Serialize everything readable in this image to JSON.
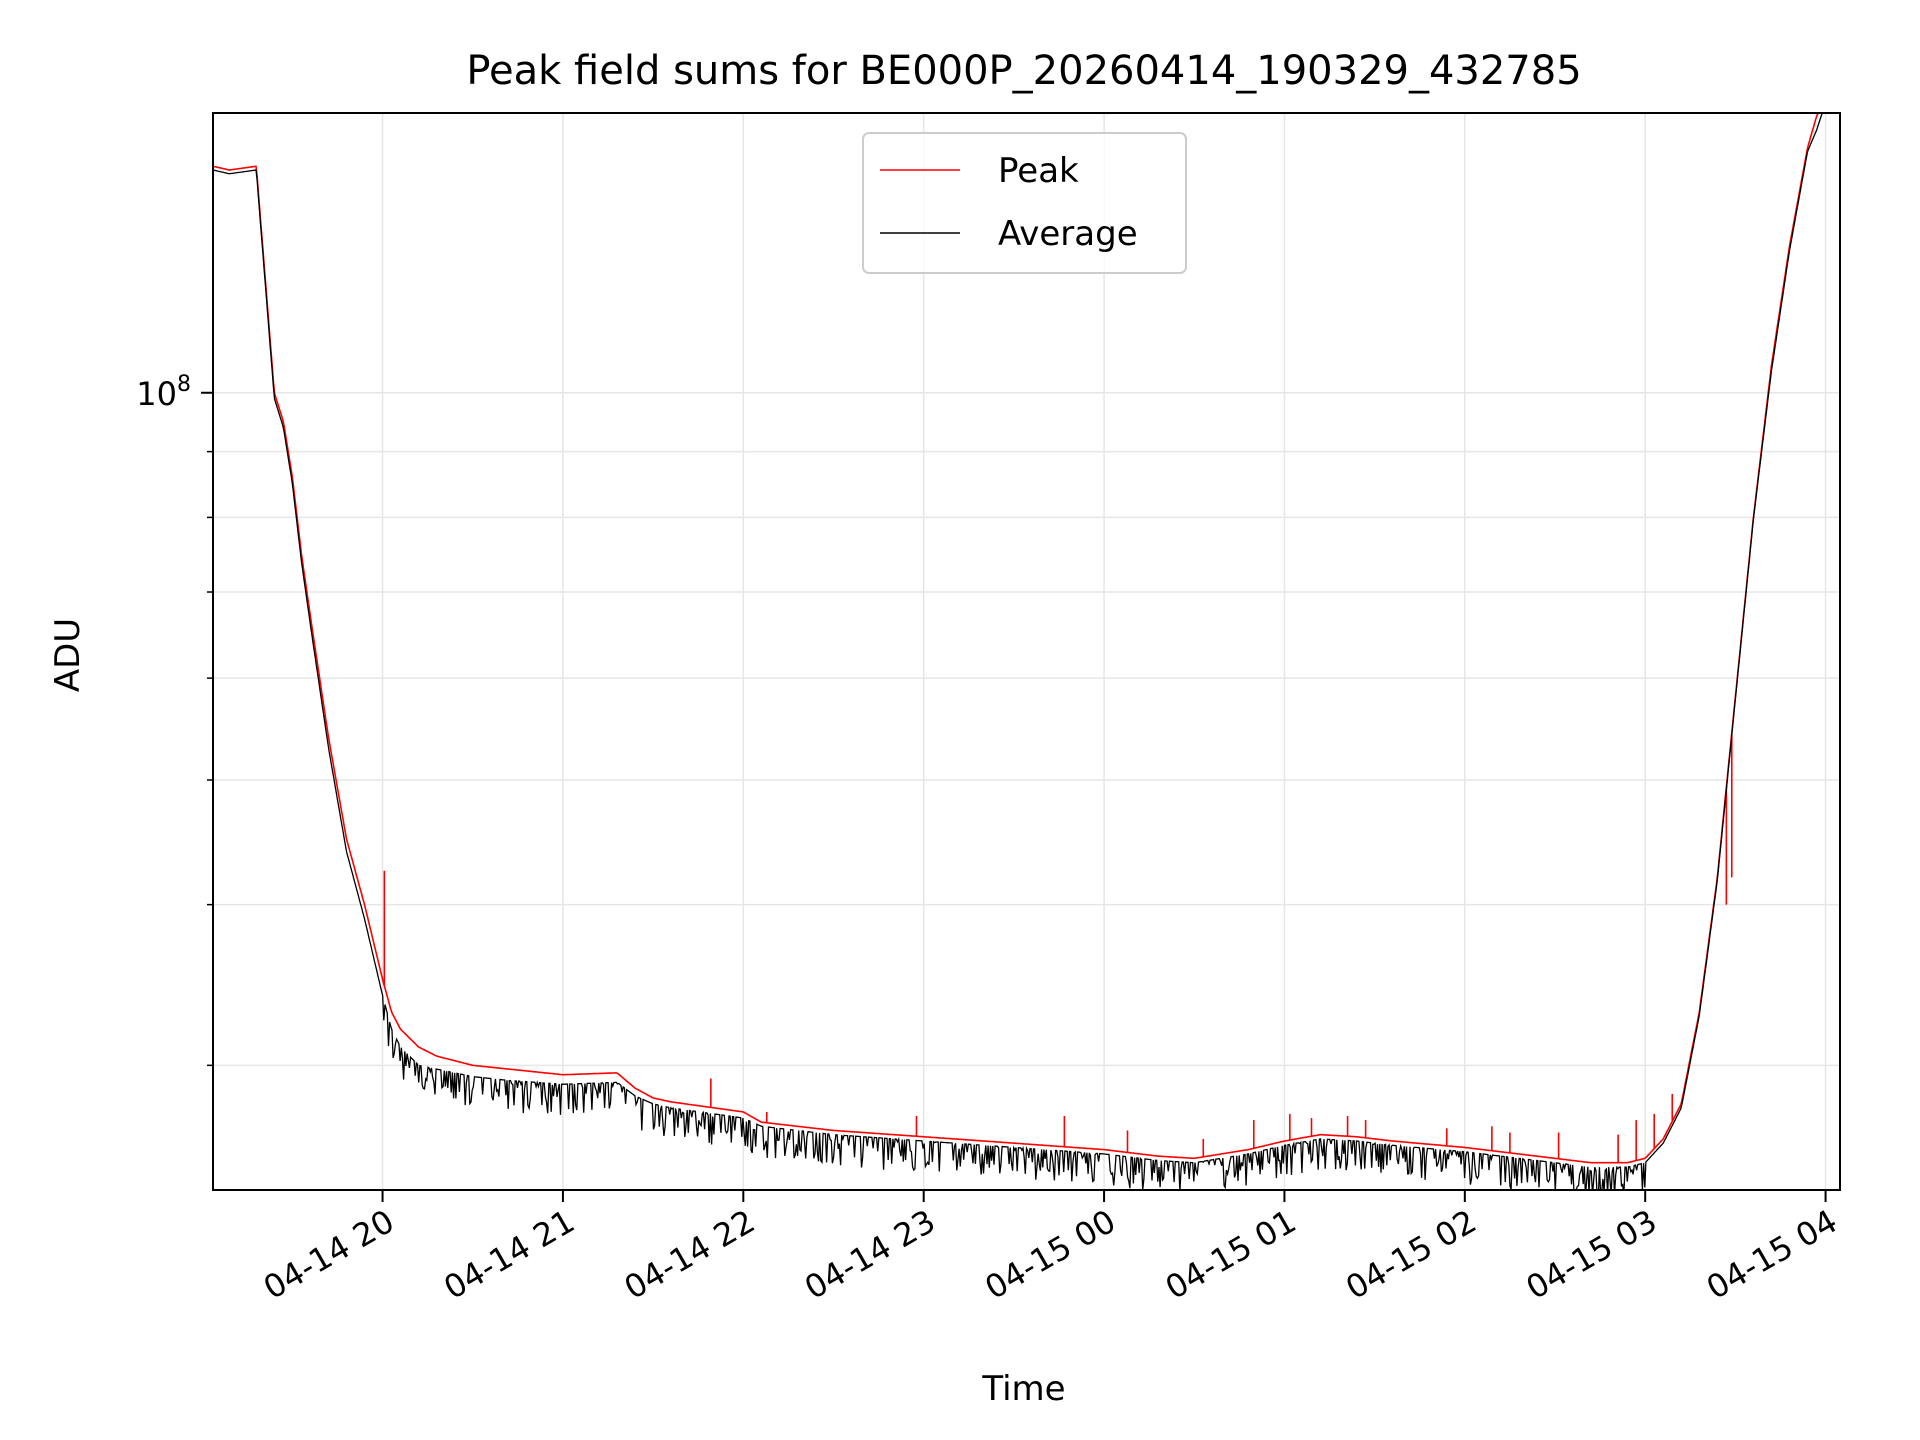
{
  "chart_data": {
    "type": "line",
    "title": "Peak field sums for BE000P_20260414_190329_432785",
    "xlabel": "Time",
    "ylabel": "ADU",
    "y_scale": "log",
    "ylim": [
      24000000,
      165000000
    ],
    "x_unit": "hours since 04-14 19:00",
    "xlim": [
      0.06,
      9.08
    ],
    "x_ticks": [
      {
        "x": 1,
        "label": "04-14 20"
      },
      {
        "x": 2,
        "label": "04-14 21"
      },
      {
        "x": 3,
        "label": "04-14 22"
      },
      {
        "x": 4,
        "label": "04-14 23"
      },
      {
        "x": 5,
        "label": "04-15 00"
      },
      {
        "x": 6,
        "label": "04-15 01"
      },
      {
        "x": 7,
        "label": "04-15 02"
      },
      {
        "x": 8,
        "label": "04-15 03"
      },
      {
        "x": 9,
        "label": "04-15 04"
      }
    ],
    "y_major_ticks": [
      {
        "value": 100000000,
        "label_base": "10",
        "label_exp": "8"
      }
    ],
    "y_minor_ticks": [
      30000000,
      40000000,
      50000000,
      60000000,
      70000000,
      80000000,
      90000000,
      200000000
    ],
    "grid": true,
    "legend_position": "top-center",
    "series": [
      {
        "name": "Peak",
        "color": "#ff0000",
        "x": [
          0.06,
          0.15,
          0.3,
          0.4,
          0.45,
          0.5,
          0.55,
          0.6,
          0.7,
          0.8,
          0.9,
          1.0,
          1.05,
          1.1,
          1.2,
          1.3,
          1.5,
          1.7,
          2.0,
          2.3,
          2.4,
          2.5,
          2.6,
          3.0,
          3.1,
          3.5,
          4.0,
          4.5,
          5.0,
          5.3,
          5.5,
          5.8,
          6.0,
          6.2,
          6.4,
          6.6,
          7.0,
          7.5,
          7.7,
          7.9,
          8.0,
          8.1,
          8.2,
          8.3,
          8.4,
          8.5,
          8.6,
          8.7,
          8.8,
          8.9,
          8.95,
          9.0
        ],
        "values": [
          150000000,
          149000000,
          150000000,
          100000000,
          95000000,
          86000000,
          75000000,
          67000000,
          54000000,
          45000000,
          40000000,
          35000000,
          33000000,
          32000000,
          31000000,
          30500000,
          30000000,
          29800000,
          29500000,
          29600000,
          28800000,
          28300000,
          28100000,
          27600000,
          27100000,
          26700000,
          26400000,
          26100000,
          25800000,
          25500000,
          25400000,
          25800000,
          26200000,
          26500000,
          26400000,
          26200000,
          25900000,
          25400000,
          25200000,
          25200000,
          25400000,
          26300000,
          28000000,
          33000000,
          42000000,
          58000000,
          80000000,
          105000000,
          130000000,
          155000000,
          164000000,
          170000000
        ],
        "spikes": [
          {
            "x": 1.01,
            "value": 42500000
          },
          {
            "x": 2.82,
            "value": 29300000
          },
          {
            "x": 3.13,
            "value": 27600000
          },
          {
            "x": 3.96,
            "value": 27400000
          },
          {
            "x": 4.78,
            "value": 27400000
          },
          {
            "x": 5.13,
            "value": 26700000
          },
          {
            "x": 5.55,
            "value": 26300000
          },
          {
            "x": 5.83,
            "value": 27200000
          },
          {
            "x": 6.03,
            "value": 27500000
          },
          {
            "x": 6.15,
            "value": 27300000
          },
          {
            "x": 6.35,
            "value": 27400000
          },
          {
            "x": 6.45,
            "value": 27200000
          },
          {
            "x": 6.9,
            "value": 26800000
          },
          {
            "x": 7.15,
            "value": 26900000
          },
          {
            "x": 7.25,
            "value": 26600000
          },
          {
            "x": 7.52,
            "value": 26600000
          },
          {
            "x": 7.85,
            "value": 26500000
          },
          {
            "x": 7.95,
            "value": 27200000
          },
          {
            "x": 8.05,
            "value": 27500000
          },
          {
            "x": 8.15,
            "value": 28500000
          },
          {
            "x": 8.3,
            "value": 33000000
          },
          {
            "x": 8.45,
            "value": 40000000
          },
          {
            "x": 8.48,
            "value": 42000000
          }
        ]
      },
      {
        "name": "Average",
        "color": "#000000",
        "x": [
          0.06,
          0.15,
          0.3,
          0.4,
          0.45,
          0.5,
          0.55,
          0.6,
          0.7,
          0.8,
          0.9,
          1.0,
          1.05,
          1.1,
          1.2,
          1.3,
          1.5,
          1.7,
          2.0,
          2.3,
          2.4,
          2.5,
          2.6,
          3.0,
          3.1,
          3.5,
          4.0,
          4.5,
          5.0,
          5.3,
          5.5,
          5.8,
          6.0,
          6.2,
          6.4,
          6.6,
          7.0,
          7.5,
          7.7,
          7.9,
          8.0,
          8.1,
          8.2,
          8.3,
          8.4,
          8.5,
          8.6,
          8.7,
          8.8,
          8.9,
          8.95,
          9.0
        ],
        "values": [
          149000000,
          148000000,
          149000000,
          99000000,
          94000000,
          85000000,
          74000000,
          66000000,
          53000000,
          44000000,
          39000000,
          34000000,
          32000000,
          31000000,
          30000000,
          29800000,
          29400000,
          29200000,
          29000000,
          29100000,
          28400000,
          28000000,
          27800000,
          27300000,
          26900000,
          26500000,
          26200000,
          25900000,
          25600000,
          25300000,
          25200000,
          25600000,
          26000000,
          26300000,
          26200000,
          26000000,
          25700000,
          25200000,
          25000000,
          25000000,
          25200000,
          26100000,
          27800000,
          32800000,
          41800000,
          57800000,
          79800000,
          104000000,
          129000000,
          154000000,
          160000000,
          168000000
        ],
        "noise_drops_start_x": 1.0,
        "noise_drops_end_x": 8.0,
        "noise_drop_depth_fraction": 0.035
      }
    ]
  }
}
